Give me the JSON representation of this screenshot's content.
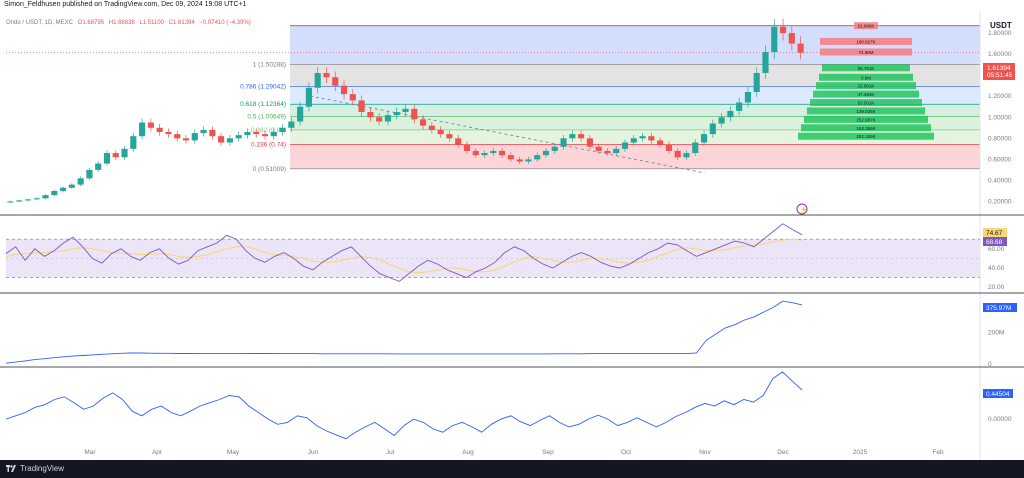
{
  "header": {
    "caption": "Simon_Feldhusen published on TradingView.com, Dec 09, 2024 19:08 UTC+1"
  },
  "footer": {
    "brand": "TradingView"
  },
  "legend": {
    "symbol": "Ondo / USDT, 1D, MEXC",
    "open": "O1.68795",
    "high": "H1.68838",
    "low": "L1.51100",
    "close": "C1.61394",
    "change": "−0.07410 (−4.39%)"
  },
  "currency_label": "USDT",
  "price_tag": {
    "price": "1.61394",
    "countdown": "05:51:45"
  },
  "rsi_tags": {
    "rsi": "74.67",
    "ma": "68.68"
  },
  "volume_tag": "375.97M",
  "osc_tag": "0.44504",
  "colors": {
    "up": "#26a69a",
    "down": "#ef5350",
    "line": "#2962ff",
    "rsi": "#7e57c2",
    "rsi_ma": "#f7d774",
    "fib_band_top": "#2962ff",
    "fib_band_bottom": "#f23645"
  },
  "chart_data": [
    {
      "type": "candlestick",
      "title": "Ondo / USDT, 1D, MEXC",
      "x_ticks": [
        "Mar",
        "Apr",
        "May",
        "Jun",
        "Jul",
        "Aug",
        "Sep",
        "Oct",
        "Nov",
        "Dec",
        "2025",
        "Feb"
      ],
      "y_ticks": [
        "1.80000",
        "1.60000",
        "1.40000",
        "1.20000",
        "1.00000",
        "0.80000",
        "0.60000",
        "0.40000",
        "0.20000"
      ],
      "y_range": [
        0.1,
        2.0
      ],
      "last_price": 1.61394,
      "close_series": [
        0.2,
        0.21,
        0.22,
        0.23,
        0.26,
        0.3,
        0.33,
        0.36,
        0.42,
        0.5,
        0.56,
        0.66,
        0.62,
        0.7,
        0.82,
        0.95,
        0.9,
        0.86,
        0.84,
        0.8,
        0.78,
        0.85,
        0.88,
        0.82,
        0.76,
        0.8,
        0.83,
        0.86,
        0.84,
        0.82,
        0.86,
        0.9,
        0.96,
        1.1,
        1.28,
        1.42,
        1.38,
        1.3,
        1.22,
        1.16,
        1.05,
        1.0,
        0.96,
        1.02,
        1.05,
        1.08,
        0.98,
        0.92,
        0.88,
        0.84,
        0.8,
        0.74,
        0.68,
        0.64,
        0.66,
        0.68,
        0.64,
        0.6,
        0.58,
        0.6,
        0.64,
        0.68,
        0.72,
        0.8,
        0.84,
        0.8,
        0.72,
        0.68,
        0.66,
        0.7,
        0.76,
        0.8,
        0.82,
        0.78,
        0.74,
        0.68,
        0.62,
        0.66,
        0.76,
        0.84,
        0.94,
        1.0,
        1.06,
        1.14,
        1.24,
        1.42,
        1.62,
        1.86,
        1.8,
        1.7,
        1.61394
      ],
      "fib_levels": [
        {
          "label": "1 (1.50288)",
          "value": 1.50288,
          "color": "#787b86"
        },
        {
          "label": "0.786 (1.29042)",
          "value": 1.29042,
          "color": "#2962ff"
        },
        {
          "label": "0.618 (1.12364)",
          "value": 1.12364,
          "color": "#089981"
        },
        {
          "label": "0.5 (1.00649)",
          "value": 1.00649,
          "color": "#4caf50"
        },
        {
          "label": "0.382 (0.88)",
          "value": 0.88,
          "color": "#81c784"
        },
        {
          "label": "0.236 (0.74)",
          "value": 0.74,
          "color": "#f23645"
        },
        {
          "label": "0 (0.51009)",
          "value": 0.51009,
          "color": "#787b86"
        }
      ],
      "volume_profile": [
        {
          "label": "21.966K",
          "price": 1.87,
          "side": "down"
        },
        {
          "label": "180.827K",
          "price": 1.72,
          "side": "down"
        },
        {
          "label": "74.98M",
          "price": 1.62,
          "side": "down"
        },
        {
          "label": "55.761K",
          "price": 1.47,
          "side": "up"
        },
        {
          "label": "0.9M",
          "price": 1.38,
          "side": "up"
        },
        {
          "label": "22.901K",
          "price": 1.3,
          "side": "up"
        },
        {
          "label": "47.494K",
          "price": 1.22,
          "side": "up"
        },
        {
          "label": "53.501K",
          "price": 1.14,
          "side": "up"
        },
        {
          "label": "129.035K",
          "price": 1.06,
          "side": "up"
        },
        {
          "label": "252.687K",
          "price": 0.98,
          "side": "up"
        },
        {
          "label": "163.369K",
          "price": 0.9,
          "side": "up"
        },
        {
          "label": "282.169K",
          "price": 0.82,
          "side": "up"
        }
      ]
    },
    {
      "type": "line",
      "title": "RSI",
      "y_ticks": [
        "60.00",
        "40.00",
        "20.00"
      ],
      "bands": [
        70,
        30
      ],
      "current": 74.67,
      "ma": 68.68,
      "series": [
        {
          "name": "RSI",
          "values": [
            55,
            62,
            48,
            60,
            52,
            58,
            66,
            72,
            62,
            50,
            45,
            55,
            60,
            52,
            48,
            56,
            60,
            50,
            44,
            48,
            58,
            62,
            66,
            74,
            70,
            58,
            50,
            46,
            52,
            56,
            50,
            42,
            38,
            46,
            52,
            58,
            62,
            52,
            42,
            34,
            30,
            26,
            34,
            42,
            48,
            44,
            38,
            34,
            30,
            36,
            40,
            46,
            56,
            62,
            58,
            50,
            44,
            40,
            46,
            52,
            56,
            52,
            46,
            42,
            40,
            44,
            50,
            56,
            60,
            66,
            64,
            58,
            52,
            56,
            60,
            64,
            68,
            66,
            62,
            70,
            78,
            86,
            80,
            74.67
          ]
        },
        {
          "name": "MA",
          "values": [
            52,
            54,
            55,
            56,
            56,
            57,
            58,
            60,
            61,
            60,
            58,
            56,
            55,
            55,
            54,
            54,
            55,
            54,
            52,
            51,
            52,
            54,
            57,
            60,
            62,
            62,
            60,
            56,
            54,
            53,
            52,
            50,
            47,
            46,
            46,
            48,
            50,
            52,
            51,
            48,
            44,
            40,
            36,
            35,
            36,
            38,
            40,
            40,
            38,
            36,
            36,
            38,
            42,
            46,
            50,
            52,
            50,
            48,
            46,
            46,
            48,
            50,
            50,
            48,
            46,
            45,
            46,
            48,
            52,
            56,
            59,
            61,
            60,
            58,
            58,
            59,
            61,
            63,
            64,
            65,
            67,
            69,
            70,
            68.68
          ]
        }
      ]
    },
    {
      "type": "line",
      "title": "Volume",
      "y_ticks": [
        "200M",
        "0"
      ],
      "current_label": "375.97M",
      "series": [
        {
          "name": "Volume",
          "values": [
            5,
            12,
            20,
            28,
            34,
            40,
            46,
            50,
            54,
            58,
            62,
            65,
            68,
            70,
            70,
            69,
            68,
            68,
            67,
            67,
            66,
            66,
            66,
            66,
            66,
            66,
            67,
            67,
            66,
            66,
            66,
            66,
            66,
            65,
            65,
            65,
            65,
            65,
            65,
            65,
            65,
            64,
            64,
            64,
            64,
            64,
            64,
            64,
            64,
            64,
            64,
            64,
            64,
            64,
            64,
            64,
            64,
            65,
            65,
            65,
            65,
            66,
            66,
            66,
            66,
            66,
            66,
            66,
            66,
            66,
            66,
            66,
            70,
            150,
            190,
            230,
            250,
            280,
            300,
            330,
            360,
            400,
            390,
            375.97
          ]
        }
      ]
    },
    {
      "type": "line",
      "title": "Oscillator",
      "y_ticks": [
        "0.00000"
      ],
      "current_label": "0.44504",
      "series": [
        {
          "name": "Oscillator",
          "values": [
            0.0,
            0.05,
            0.1,
            0.18,
            0.22,
            0.3,
            0.34,
            0.25,
            0.15,
            0.2,
            0.32,
            0.4,
            0.3,
            0.12,
            0.05,
            0.15,
            0.2,
            0.1,
            0.05,
            0.12,
            0.2,
            0.25,
            0.3,
            0.36,
            0.34,
            0.2,
            0.1,
            0.0,
            -0.08,
            -0.05,
            0.05,
            0.02,
            -0.1,
            -0.18,
            -0.24,
            -0.3,
            -0.2,
            -0.12,
            -0.05,
            -0.15,
            -0.25,
            -0.1,
            0.0,
            -0.05,
            -0.15,
            -0.2,
            -0.1,
            -0.05,
            -0.12,
            -0.2,
            -0.08,
            0.0,
            0.05,
            -0.04,
            -0.1,
            -0.02,
            0.05,
            -0.05,
            -0.12,
            -0.08,
            0.0,
            0.06,
            0.0,
            -0.1,
            -0.05,
            0.02,
            -0.05,
            -0.12,
            -0.05,
            0.04,
            0.1,
            0.18,
            0.24,
            0.2,
            0.28,
            0.22,
            0.3,
            0.26,
            0.36,
            0.62,
            0.72,
            0.58,
            0.44504
          ]
        }
      ]
    }
  ]
}
